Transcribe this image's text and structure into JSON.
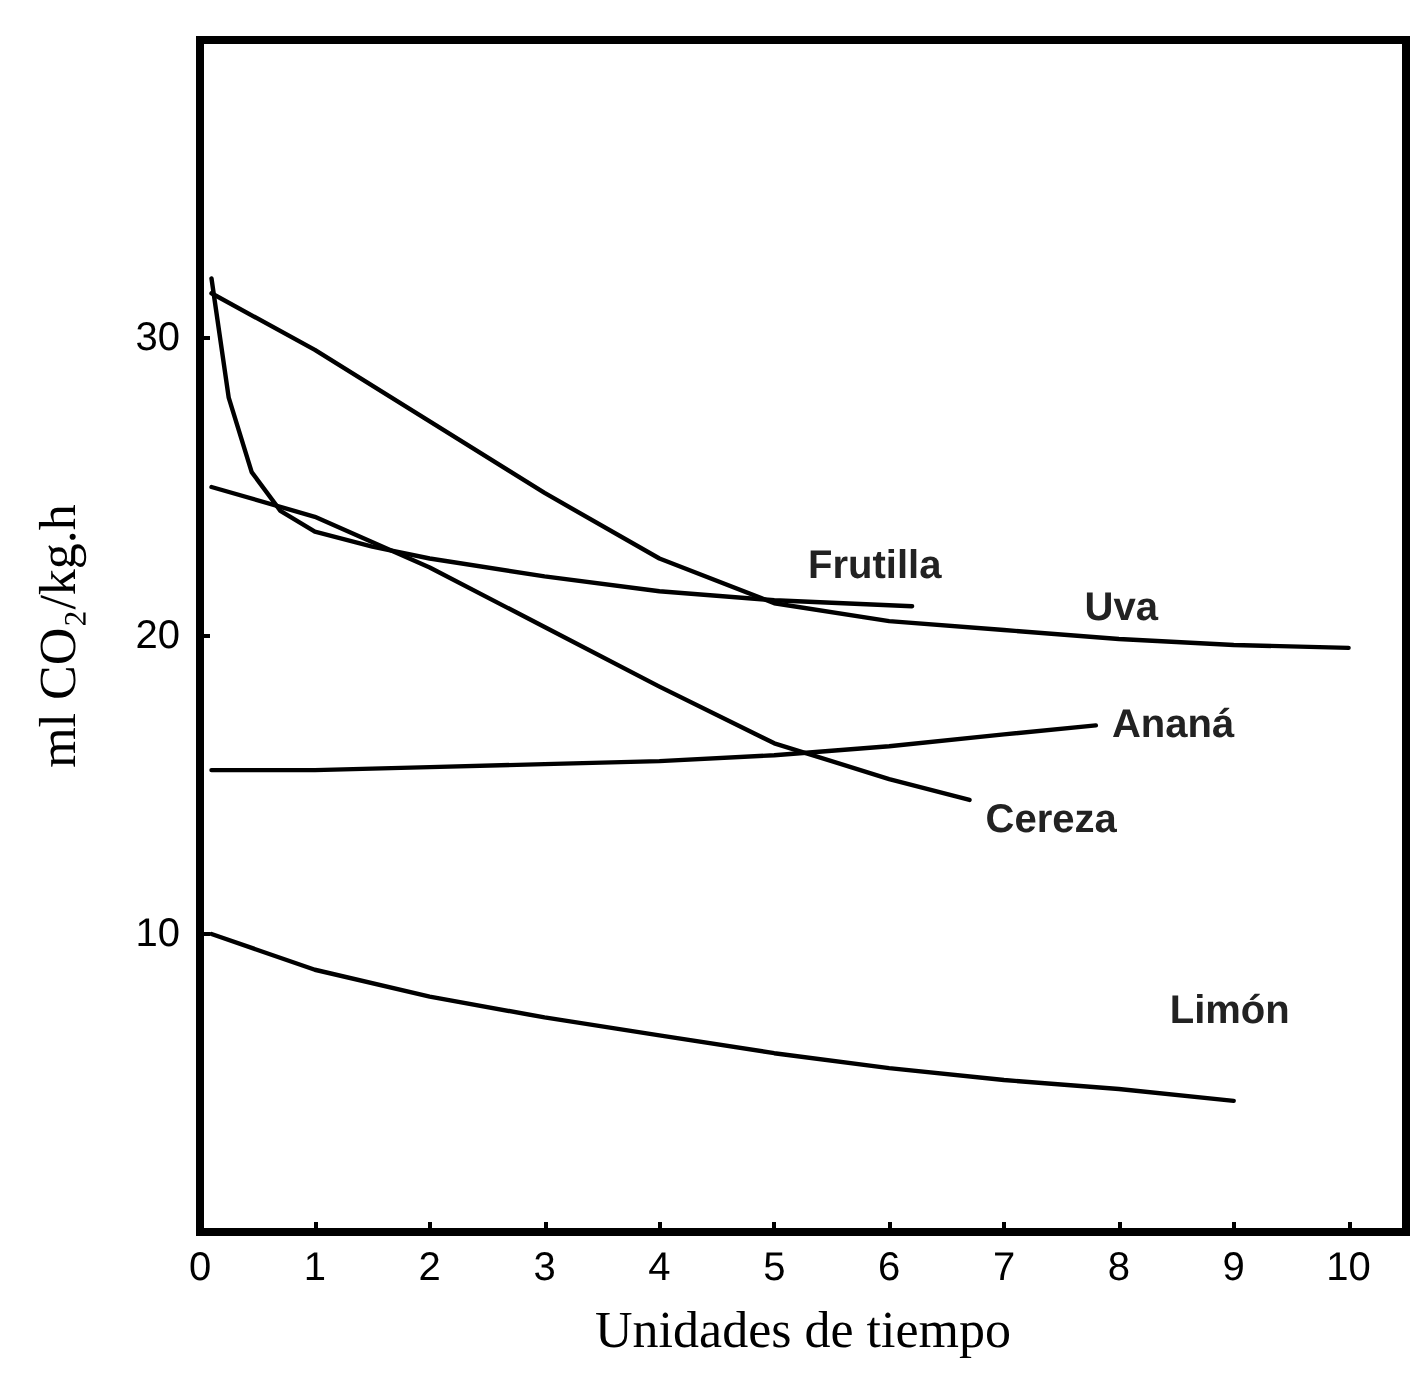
{
  "chart_data": {
    "type": "line",
    "xlabel": "Unidades de tiempo",
    "ylabel": "ml CO₂/kg.h",
    "xlim": [
      0,
      10.5
    ],
    "ylim": [
      0,
      40
    ],
    "xticks": [
      0,
      1,
      2,
      3,
      4,
      5,
      6,
      7,
      8,
      9,
      10
    ],
    "yticks": [
      10,
      20,
      30
    ],
    "grid": false,
    "legend": false,
    "marker": "none",
    "line_style": "solid",
    "series": [
      {
        "name": "Frutilla",
        "color": "#000000",
        "x": [
          0.1,
          0.25,
          0.45,
          0.7,
          1,
          1.5,
          2,
          3,
          4,
          5,
          6.2
        ],
        "values": [
          32,
          28,
          25.5,
          24.2,
          23.5,
          23,
          22.6,
          22,
          21.5,
          21.2,
          21
        ]
      },
      {
        "name": "Uva",
        "color": "#000000",
        "x": [
          0.1,
          1,
          2,
          3,
          4,
          5,
          6,
          7,
          8,
          9,
          10
        ],
        "values": [
          31.5,
          29.6,
          27.2,
          24.8,
          22.6,
          21.1,
          20.5,
          20.2,
          19.9,
          19.7,
          19.6
        ]
      },
      {
        "name": "Ananá",
        "color": "#000000",
        "x": [
          0.1,
          1,
          2,
          3,
          4,
          5,
          6,
          7,
          7.8
        ],
        "values": [
          15.5,
          15.5,
          15.6,
          15.7,
          15.8,
          16,
          16.3,
          16.7,
          17
        ]
      },
      {
        "name": "Cereza",
        "color": "#000000",
        "x": [
          0.1,
          1,
          2,
          3,
          4,
          5,
          6,
          6.7
        ],
        "values": [
          25,
          24,
          22.3,
          20.3,
          18.3,
          16.4,
          15.2,
          14.5
        ]
      },
      {
        "name": "Limón",
        "color": "#000000",
        "x": [
          0.1,
          1,
          2,
          3,
          4,
          5,
          6,
          7,
          8,
          9
        ],
        "values": [
          10,
          8.8,
          7.9,
          7.2,
          6.6,
          6,
          5.5,
          5.1,
          4.8,
          4.4
        ]
      }
    ]
  }
}
